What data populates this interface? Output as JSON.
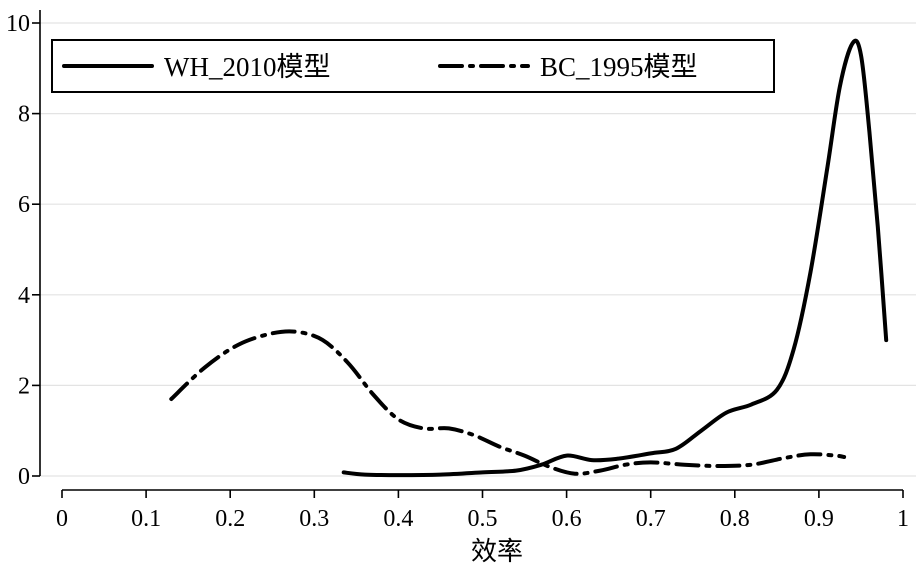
{
  "chart_data": {
    "type": "line",
    "title": "",
    "xlabel": "效率",
    "ylabel": "",
    "xlim": [
      0,
      1
    ],
    "ylim": [
      0,
      10
    ],
    "x_ticks": [
      0,
      0.1,
      0.2,
      0.3,
      0.4,
      0.5,
      0.6,
      0.7,
      0.8,
      0.9,
      1
    ],
    "x_tick_labels": [
      "0",
      "0.1",
      "0.2",
      "0.3",
      "0.4",
      "0.5",
      "0.6",
      "0.7",
      "0.8",
      "0.9",
      "1"
    ],
    "y_ticks": [
      0,
      2,
      4,
      6,
      8,
      10
    ],
    "y_tick_labels": [
      "0",
      "2",
      "4",
      "6",
      "8",
      "10"
    ],
    "grid": "horizontal",
    "legend_position": "top",
    "series": [
      {
        "name": "WH_2010模型",
        "style": "solid",
        "points": [
          [
            0.335,
            0.08
          ],
          [
            0.36,
            0.03
          ],
          [
            0.4,
            0.02
          ],
          [
            0.45,
            0.03
          ],
          [
            0.5,
            0.08
          ],
          [
            0.54,
            0.12
          ],
          [
            0.57,
            0.25
          ],
          [
            0.6,
            0.45
          ],
          [
            0.63,
            0.35
          ],
          [
            0.66,
            0.38
          ],
          [
            0.7,
            0.5
          ],
          [
            0.73,
            0.6
          ],
          [
            0.76,
            1.0
          ],
          [
            0.79,
            1.4
          ],
          [
            0.82,
            1.58
          ],
          [
            0.85,
            1.9
          ],
          [
            0.87,
            2.8
          ],
          [
            0.89,
            4.5
          ],
          [
            0.91,
            6.8
          ],
          [
            0.925,
            8.6
          ],
          [
            0.94,
            9.55
          ],
          [
            0.95,
            9.3
          ],
          [
            0.96,
            7.6
          ],
          [
            0.97,
            5.5
          ],
          [
            0.98,
            3.0
          ]
        ]
      },
      {
        "name": "BC_1995模型",
        "style": "dash-dot",
        "points": [
          [
            0.13,
            1.7
          ],
          [
            0.17,
            2.4
          ],
          [
            0.21,
            2.9
          ],
          [
            0.25,
            3.15
          ],
          [
            0.28,
            3.18
          ],
          [
            0.31,
            3.0
          ],
          [
            0.34,
            2.5
          ],
          [
            0.37,
            1.8
          ],
          [
            0.4,
            1.25
          ],
          [
            0.43,
            1.05
          ],
          [
            0.46,
            1.05
          ],
          [
            0.49,
            0.9
          ],
          [
            0.52,
            0.65
          ],
          [
            0.55,
            0.45
          ],
          [
            0.58,
            0.2
          ],
          [
            0.61,
            0.05
          ],
          [
            0.64,
            0.12
          ],
          [
            0.67,
            0.25
          ],
          [
            0.7,
            0.3
          ],
          [
            0.74,
            0.25
          ],
          [
            0.78,
            0.22
          ],
          [
            0.82,
            0.25
          ],
          [
            0.86,
            0.4
          ],
          [
            0.89,
            0.48
          ],
          [
            0.92,
            0.45
          ],
          [
            0.93,
            0.42
          ]
        ]
      }
    ]
  }
}
